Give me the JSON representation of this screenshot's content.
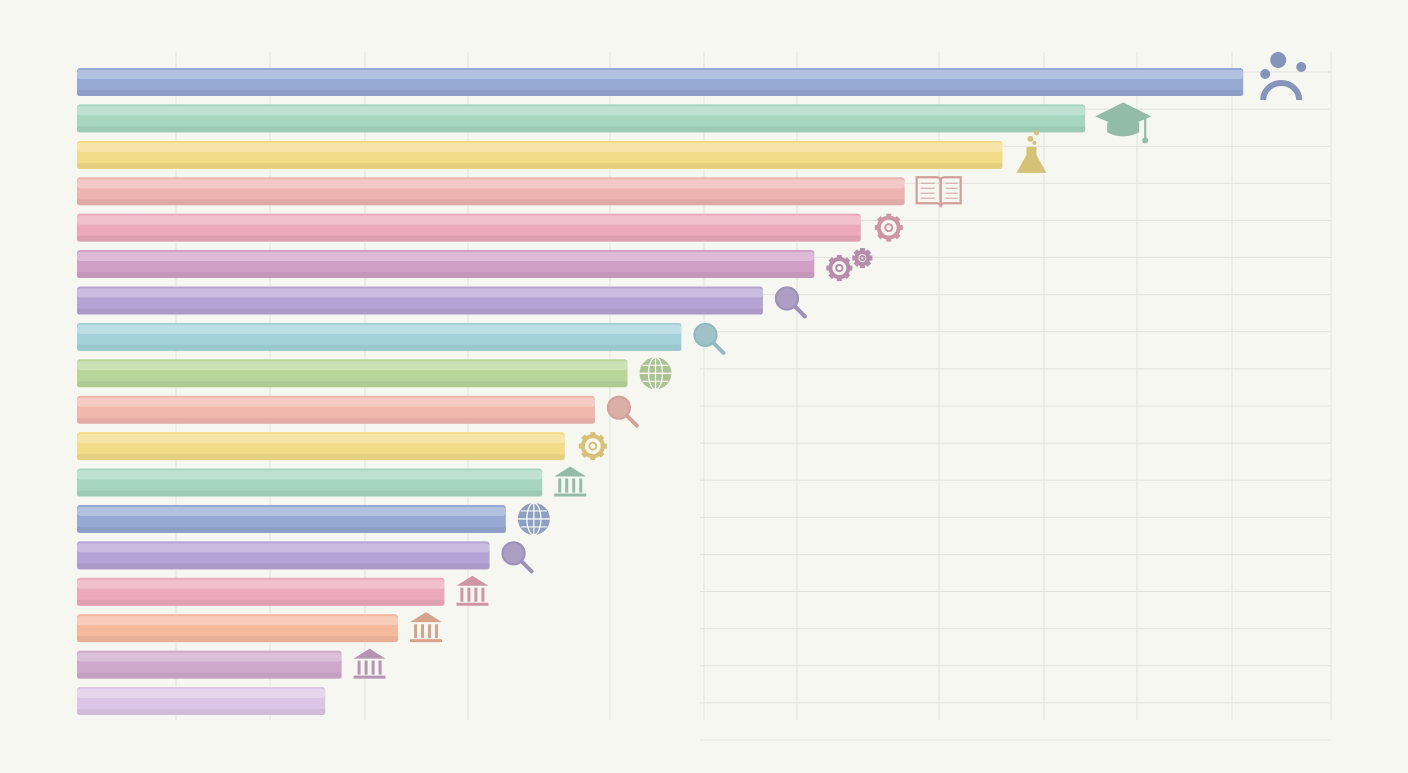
{
  "chart_data": {
    "type": "bar",
    "orientation": "horizontal",
    "title": "",
    "xlabel": "",
    "ylabel": "",
    "grid": true,
    "tick_labels_shown": false,
    "xlim": [
      0,
      100
    ],
    "categories": [
      "",
      "",
      "",
      "",
      "",
      "",
      "",
      "",
      "",
      "",
      "",
      "",
      "",
      "",
      "",
      "",
      "",
      ""
    ],
    "values": [
      93.0,
      80.4,
      73.8,
      66.0,
      62.5,
      58.8,
      54.7,
      48.2,
      43.9,
      41.3,
      38.9,
      37.1,
      34.2,
      32.9,
      29.3,
      25.6,
      21.1,
      19.8
    ],
    "bars": [
      {
        "value": 93.0,
        "color": "#95a9d4",
        "icon": "people-icon"
      },
      {
        "value": 80.4,
        "color": "#a6d6bf",
        "icon": "graduation-cap-icon"
      },
      {
        "value": 73.8,
        "color": "#f3dc87",
        "icon": "flask-icon"
      },
      {
        "value": 66.0,
        "color": "#eeb4b0",
        "icon": "book-icon"
      },
      {
        "value": 62.5,
        "color": "#eca9bb",
        "icon": "gear-icon"
      },
      {
        "value": 58.8,
        "color": "#d0a0c6",
        "icon": "gears-icon"
      },
      {
        "value": 54.7,
        "color": "#b5a3d5",
        "icon": "magnifier-icon"
      },
      {
        "value": 48.2,
        "color": "#a4d2da",
        "icon": "magnifier-icon"
      },
      {
        "value": 43.9,
        "color": "#b8d69a",
        "icon": "globe-icon"
      },
      {
        "value": 41.3,
        "color": "#f1b8ae",
        "icon": "magnifier-icon"
      },
      {
        "value": 38.9,
        "color": "#f3dc87",
        "icon": "gear-icon"
      },
      {
        "value": 37.1,
        "color": "#a6d6bf",
        "icon": "institution-icon"
      },
      {
        "value": 34.2,
        "color": "#95a9d4",
        "icon": "globe-icon"
      },
      {
        "value": 32.9,
        "color": "#b5a3d5",
        "icon": "magnifier-icon"
      },
      {
        "value": 29.3,
        "color": "#eca9bb",
        "icon": "institution-icon"
      },
      {
        "value": 25.6,
        "color": "#f5b99e",
        "icon": "institution-icon"
      },
      {
        "value": 21.1,
        "color": "#cfa8cc",
        "icon": "institution-icon"
      },
      {
        "value": 19.8,
        "color": "#dcc6e5",
        "icon": ""
      }
    ]
  }
}
